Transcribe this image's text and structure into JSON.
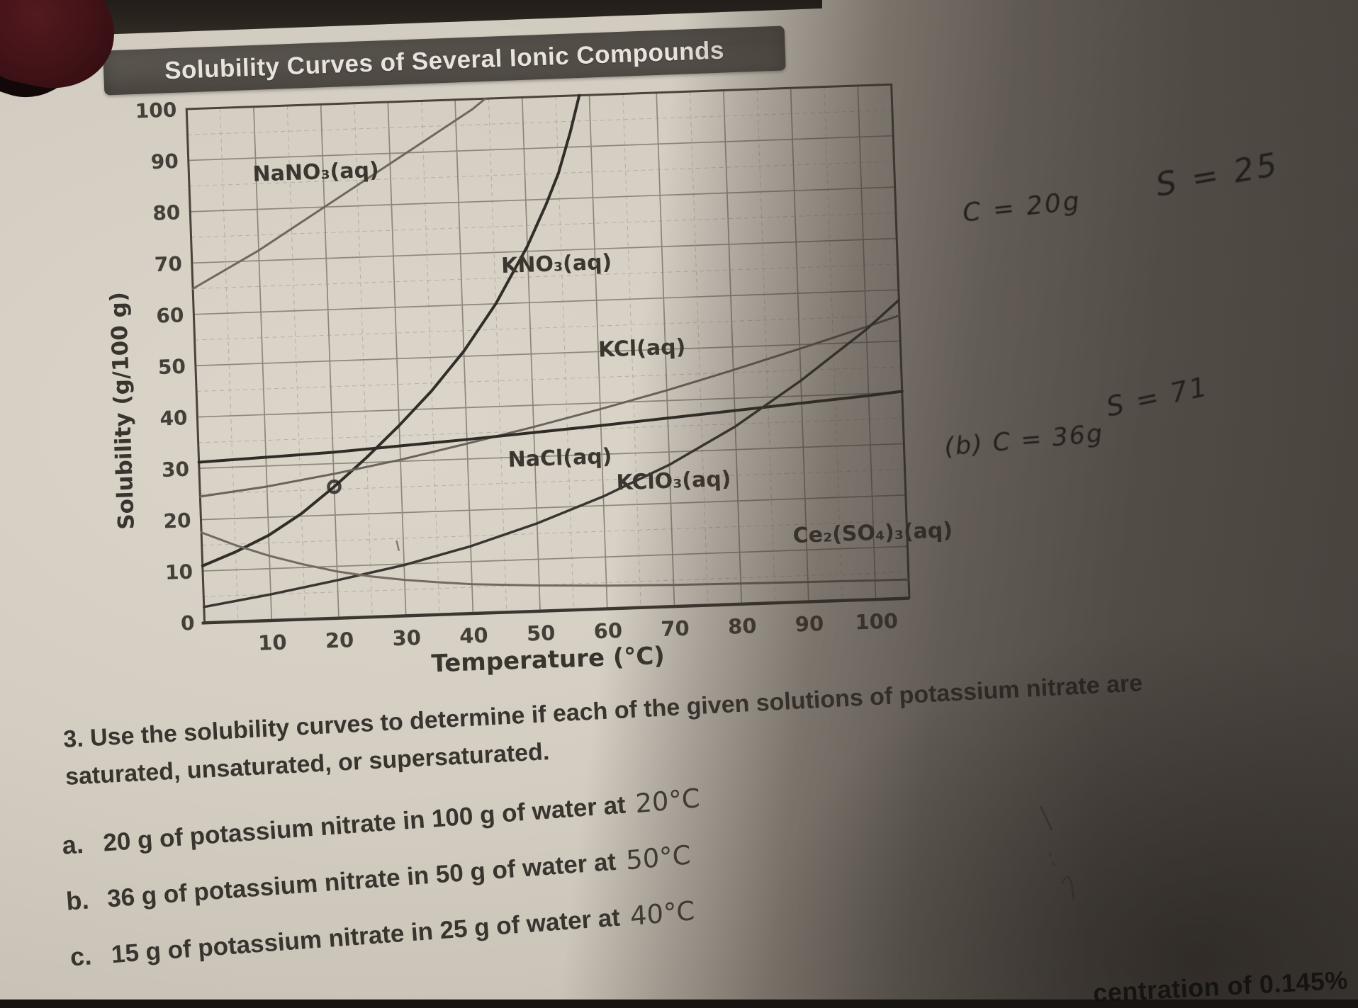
{
  "chart_data": {
    "type": "line",
    "title": "Solubility Curves of Several Ionic Compounds",
    "xlabel": "Temperature (°C)",
    "ylabel": "Solubility (g/100 g)",
    "xlim": [
      0,
      105
    ],
    "ylim": [
      0,
      100
    ],
    "x_ticks": [
      10,
      20,
      30,
      40,
      50,
      60,
      70,
      80,
      90,
      100
    ],
    "y_ticks": [
      0,
      10,
      20,
      30,
      40,
      50,
      60,
      70,
      80,
      90,
      100
    ],
    "grid": "major every 10, faint dashed minor every 5",
    "legend_position": "inline-labels",
    "series": [
      {
        "id": "nano3",
        "name": "NaNO3(aq)",
        "label": "NaNO₃(aq)",
        "color": "#6e675f",
        "width": 3,
        "label_pos": [
          9.5,
          85.5
        ],
        "points": [
          [
            0,
            65
          ],
          [
            5,
            68.5
          ],
          [
            10,
            72
          ],
          [
            15,
            76
          ],
          [
            20,
            80
          ],
          [
            25,
            84
          ],
          [
            30,
            88
          ],
          [
            35,
            92
          ],
          [
            40,
            96
          ],
          [
            42.5,
            98
          ],
          [
            44.5,
            100
          ]
        ]
      },
      {
        "id": "kno3",
        "name": "KNO3(aq)",
        "label": "KNO₃(aq)",
        "color": "#322d28",
        "width": 4,
        "label_pos": [
          46,
          66
        ],
        "points": [
          [
            0,
            11
          ],
          [
            5,
            13.5
          ],
          [
            10,
            16.5
          ],
          [
            15,
            20.5
          ],
          [
            20,
            25.5
          ],
          [
            25,
            31
          ],
          [
            30,
            37
          ],
          [
            35,
            43.5
          ],
          [
            40,
            51
          ],
          [
            45,
            60
          ],
          [
            50,
            71
          ],
          [
            53,
            79
          ],
          [
            55,
            85
          ],
          [
            57,
            93
          ],
          [
            58.5,
            100
          ]
        ]
      },
      {
        "id": "kcl",
        "name": "KCl(aq)",
        "label": "KCl(aq)",
        "color": "#6a635b",
        "width": 3,
        "label_pos": [
          60,
          49
        ],
        "points": [
          [
            0,
            24.5
          ],
          [
            10,
            26
          ],
          [
            20,
            28
          ],
          [
            30,
            30.3
          ],
          [
            40,
            33
          ],
          [
            50,
            35.8
          ],
          [
            60,
            38.8
          ],
          [
            70,
            42
          ],
          [
            80,
            45.5
          ],
          [
            90,
            49.2
          ],
          [
            100,
            53
          ],
          [
            105,
            55
          ]
        ]
      },
      {
        "id": "nacl",
        "name": "NaCl(aq)",
        "label": "NaCl(aq)",
        "color": "#2f2b26",
        "width": 4,
        "label_pos": [
          46,
          28.2
        ],
        "points": [
          [
            0,
            31.2
          ],
          [
            20,
            32.2
          ],
          [
            40,
            33.8
          ],
          [
            60,
            35.6
          ],
          [
            80,
            37.6
          ],
          [
            100,
            39.6
          ],
          [
            105,
            40.2
          ]
        ]
      },
      {
        "id": "kclo3",
        "name": "KClO3(aq)",
        "label": "KClO₃(aq)",
        "color": "#3a3530",
        "width": 3.5,
        "label_pos": [
          62,
          23
        ],
        "points": [
          [
            0,
            3
          ],
          [
            10,
            5
          ],
          [
            20,
            7.3
          ],
          [
            30,
            9.8
          ],
          [
            40,
            13
          ],
          [
            50,
            17
          ],
          [
            60,
            21.8
          ],
          [
            70,
            27.5
          ],
          [
            80,
            34.5
          ],
          [
            90,
            43
          ],
          [
            100,
            52.5
          ],
          [
            105,
            58
          ]
        ]
      },
      {
        "id": "ce2so43",
        "name": "Ce2(SO4)3(aq)",
        "label": "Ce₂(SO₄)₃(aq)",
        "color": "#716a62",
        "width": 3,
        "label_pos": [
          88,
          11.5
        ],
        "points": [
          [
            0,
            17.5
          ],
          [
            5,
            14.8
          ],
          [
            10,
            12.5
          ],
          [
            15,
            10.6
          ],
          [
            20,
            9
          ],
          [
            25,
            7.8
          ],
          [
            30,
            6.9
          ],
          [
            35,
            6.2
          ],
          [
            40,
            5.6
          ],
          [
            50,
            4.9
          ],
          [
            60,
            4.4
          ],
          [
            70,
            4.1
          ],
          [
            80,
            3.9
          ],
          [
            90,
            3.75
          ],
          [
            100,
            3.6
          ],
          [
            105,
            3.55
          ]
        ]
      }
    ],
    "marker": {
      "series": "KNO₃(aq)",
      "x": 20,
      "y": 25.5,
      "style": "pencil circle"
    }
  },
  "questions": {
    "number": "3.",
    "intro_line1": "Use the solubility curves to determine if each of the given solutions of potassium nitrate are",
    "intro_line2": "saturated, unsaturated, or supersaturated.",
    "items": [
      {
        "letter": "a.",
        "text": "20 g of potassium nitrate in 100 g of water at",
        "temp": "20°C"
      },
      {
        "letter": "b.",
        "text": "36 g of potassium nitrate in 50 g of water at",
        "temp": "50°C"
      },
      {
        "letter": "c.",
        "text": "15 g of potassium nitrate in 25 g of water at",
        "temp": "40°C"
      }
    ]
  },
  "annotations": {
    "part_a": {
      "concentration": "C = 20g",
      "solubility": "S = 25"
    },
    "part_b": {
      "concentration": "(b) C = 36g",
      "solubility": "S = 71"
    }
  },
  "shadow_corner_text": "centration of 0.145%"
}
